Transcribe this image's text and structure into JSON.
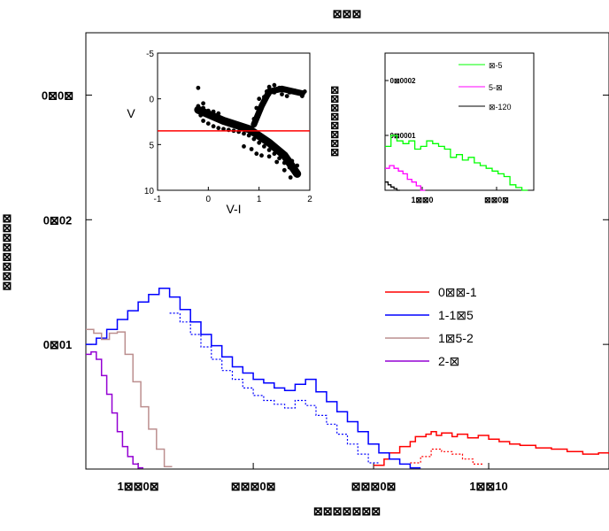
{
  "chart_data": [
    {
      "type": "line",
      "title": "⊠⊠⊠",
      "xlabel": "⊠⊠⊠⊠⊠⊠⊠",
      "ylabel": "⊠⊠⊠⊠⊠⊠⊠⊠",
      "x_ticks": [
        "1⊠⊠0⊠",
        "⊠⊠⊠0⊠",
        "⊠⊠⊠0⊠",
        "1⊠⊠10"
      ],
      "y_ticks": [
        "0⊠01",
        "0⊠02",
        "0⊠0⊠"
      ],
      "xlim": [
        0,
        1
      ],
      "ylim": [
        0,
        0.035
      ],
      "legend_position": "right",
      "series": [
        {
          "name": "0⊠⊠-1",
          "color": "#ff0000",
          "solid": {
            "x": [
              0.55,
              0.57,
              0.58,
              0.6,
              0.62,
              0.63,
              0.65,
              0.66,
              0.67,
              0.68,
              0.7,
              0.71,
              0.73,
              0.75,
              0.77,
              0.79,
              0.81,
              0.83,
              0.86,
              0.89,
              0.92,
              0.95,
              0.98,
              1.0
            ],
            "y": [
              0.0003,
              0.0008,
              0.0013,
              0.0018,
              0.0022,
              0.0026,
              0.0028,
              0.003,
              0.0027,
              0.0029,
              0.0026,
              0.0028,
              0.0025,
              0.0027,
              0.0024,
              0.0022,
              0.002,
              0.0019,
              0.0017,
              0.0016,
              0.0014,
              0.0012,
              0.0013,
              0.0012
            ]
          },
          "dotted": {
            "x": [
              0.62,
              0.64,
              0.66,
              0.68,
              0.7,
              0.72,
              0.74
            ],
            "y": [
              0.0005,
              0.001,
              0.0016,
              0.0014,
              0.0012,
              0.0008,
              0.0004
            ]
          }
        },
        {
          "name": "1-1⊠5",
          "color": "#0000ff",
          "solid": {
            "x": [
              0,
              0.02,
              0.04,
              0.06,
              0.08,
              0.1,
              0.12,
              0.14,
              0.16,
              0.18,
              0.2,
              0.22,
              0.24,
              0.26,
              0.28,
              0.3,
              0.32,
              0.34,
              0.36,
              0.38,
              0.4,
              0.42,
              0.44,
              0.46,
              0.48,
              0.5,
              0.52,
              0.54,
              0.56,
              0.58,
              0.6,
              0.62
            ],
            "y": [
              0.01,
              0.0105,
              0.0112,
              0.012,
              0.0127,
              0.0134,
              0.014,
              0.0145,
              0.0138,
              0.0128,
              0.0118,
              0.0108,
              0.0099,
              0.009,
              0.0082,
              0.0077,
              0.0072,
              0.0069,
              0.0065,
              0.0063,
              0.0068,
              0.0072,
              0.0062,
              0.0054,
              0.0046,
              0.0038,
              0.003,
              0.002,
              0.0013,
              0.0008,
              0.0004,
              0.0001
            ]
          },
          "dotted": {
            "x": [
              0.16,
              0.18,
              0.2,
              0.22,
              0.24,
              0.26,
              0.28,
              0.3,
              0.32,
              0.34,
              0.36,
              0.38,
              0.4,
              0.42,
              0.44,
              0.46,
              0.48,
              0.5,
              0.52,
              0.54
            ],
            "y": [
              0.0125,
              0.0118,
              0.0108,
              0.0098,
              0.0088,
              0.0079,
              0.0072,
              0.0065,
              0.0059,
              0.0055,
              0.0052,
              0.0049,
              0.0055,
              0.0051,
              0.0043,
              0.0036,
              0.0028,
              0.002,
              0.0012,
              0.0005
            ]
          }
        },
        {
          "name": "1⊠5-2",
          "color": "#bc8f8f",
          "solid": {
            "x": [
              0,
              0.015,
              0.03,
              0.045,
              0.06,
              0.075,
              0.09,
              0.105,
              0.12,
              0.135,
              0.15
            ],
            "y": [
              0.0112,
              0.0109,
              0.0104,
              0.0109,
              0.011,
              0.0092,
              0.007,
              0.005,
              0.0032,
              0.0016,
              0.0002
            ]
          }
        },
        {
          "name": "2-⊠",
          "color": "#9400d3",
          "solid": {
            "x": [
              0,
              0.01,
              0.02,
              0.03,
              0.04,
              0.05,
              0.06,
              0.07,
              0.08,
              0.09,
              0.1
            ],
            "y": [
              0.0092,
              0.0094,
              0.0088,
              0.0075,
              0.006,
              0.0045,
              0.003,
              0.0018,
              0.001,
              0.0004,
              0.0001
            ]
          }
        }
      ]
    },
    {
      "type": "scatter",
      "xlabel": "V-I",
      "ylabel": "V",
      "x_ticks": [
        "-1",
        "0",
        "1",
        "2"
      ],
      "y_ticks": [
        "-5",
        "0",
        "5",
        "10"
      ],
      "xlim": [
        -1,
        2
      ],
      "ylim": [
        10,
        -5
      ],
      "reference_line": {
        "y": 3.5,
        "color": "#ff0000"
      },
      "points": [
        [
          -0.2,
          1.2
        ],
        [
          -0.1,
          1.0
        ],
        [
          0.0,
          1.3
        ],
        [
          0.1,
          1.4
        ],
        [
          0.2,
          1.6
        ],
        [
          -0.15,
          1.8
        ],
        [
          0.05,
          1.9
        ],
        [
          0.15,
          2.1
        ],
        [
          0.25,
          2.3
        ],
        [
          0.35,
          2.5
        ],
        [
          0.45,
          2.7
        ],
        [
          0.55,
          2.9
        ],
        [
          0.65,
          3.1
        ],
        [
          0.75,
          3.3
        ],
        [
          0.85,
          3.5
        ],
        [
          0.95,
          3.8
        ],
        [
          1.05,
          4.1
        ],
        [
          1.15,
          4.5
        ],
        [
          1.25,
          4.9
        ],
        [
          1.35,
          5.3
        ],
        [
          1.45,
          5.8
        ],
        [
          1.55,
          6.3
        ],
        [
          1.65,
          6.8
        ],
        [
          1.75,
          7.3
        ],
        [
          -0.1,
          2.4
        ],
        [
          0.0,
          2.7
        ],
        [
          0.1,
          3.0
        ],
        [
          0.2,
          3.2
        ],
        [
          0.3,
          3.3
        ],
        [
          0.4,
          3.4
        ],
        [
          0.5,
          3.5
        ],
        [
          0.6,
          3.6
        ],
        [
          0.7,
          3.8
        ],
        [
          0.8,
          4.0
        ],
        [
          0.9,
          4.4
        ],
        [
          1.0,
          4.8
        ],
        [
          1.1,
          5.2
        ],
        [
          1.2,
          5.6
        ],
        [
          1.3,
          6.0
        ],
        [
          1.4,
          6.5
        ],
        [
          1.5,
          7.0
        ],
        [
          1.6,
          7.5
        ],
        [
          1.7,
          8.0
        ],
        [
          1.75,
          8.3
        ],
        [
          1.62,
          8.6
        ],
        [
          1.5,
          7.8
        ],
        [
          1.35,
          6.9
        ],
        [
          1.2,
          6.3
        ],
        [
          0.9,
          2.2
        ],
        [
          1.0,
          1.4
        ],
        [
          1.05,
          0.6
        ],
        [
          1.1,
          -0.2
        ],
        [
          1.15,
          -0.8
        ],
        [
          1.2,
          -1.3
        ],
        [
          1.3,
          -1.5
        ],
        [
          1.4,
          -1.2
        ],
        [
          1.5,
          -1.0
        ],
        [
          1.6,
          -0.7
        ],
        [
          1.7,
          -0.9
        ],
        [
          1.8,
          -0.6
        ],
        [
          1.9,
          -0.8
        ],
        [
          1.85,
          -0.3
        ],
        [
          1.2,
          -0.5
        ],
        [
          1.1,
          0.2
        ],
        [
          0.95,
          1.0
        ],
        [
          1.0,
          0.0
        ],
        [
          1.25,
          -0.9
        ],
        [
          1.45,
          -0.5
        ],
        [
          1.55,
          -0.3
        ],
        [
          1.3,
          -0.7
        ],
        [
          -0.2,
          0.8
        ],
        [
          -0.1,
          0.5
        ],
        [
          0.85,
          5.5
        ],
        [
          1.05,
          6.2
        ],
        [
          0.7,
          5.2
        ],
        [
          0.95,
          6.0
        ],
        [
          1.45,
          6.0
        ],
        [
          1.6,
          7.1
        ],
        [
          1.7,
          7.7
        ],
        [
          -0.2,
          -1.2
        ]
      ]
    },
    {
      "type": "line",
      "ylabel": "⊠⊠⊠⊠⊠⊠⊠⊠",
      "x_ticks": [
        "1⊠⊠0",
        "⊠⊠0⊠"
      ],
      "y_ticks": [
        "0⊠0001",
        "0⊠0002"
      ],
      "xlim": [
        0,
        1
      ],
      "ylim": [
        0,
        0.00025
      ],
      "legend_position": "top-right",
      "series": [
        {
          "name": "⊠-5",
          "color": "#00ff00",
          "x": [
            0,
            0.04,
            0.08,
            0.12,
            0.16,
            0.2,
            0.24,
            0.28,
            0.32,
            0.36,
            0.4,
            0.44,
            0.48,
            0.52,
            0.56,
            0.6,
            0.64,
            0.68,
            0.72,
            0.76,
            0.8,
            0.84,
            0.88,
            0.92
          ],
          "y": [
            8e-05,
            0.0001,
            9e-05,
            8.5e-05,
            9e-05,
            7.5e-05,
            8e-05,
            9e-05,
            8.5e-05,
            8e-05,
            7.5e-05,
            6e-05,
            6.5e-05,
            5.5e-05,
            6e-05,
            5e-05,
            4.5e-05,
            4e-05,
            3.5e-05,
            3e-05,
            2.5e-05,
            1e-05,
            5e-06,
            0.0
          ]
        },
        {
          "name": "5-⊠",
          "color": "#ff00ff",
          "x": [
            0,
            0.03,
            0.06,
            0.09,
            0.12,
            0.15,
            0.18,
            0.21,
            0.24
          ],
          "y": [
            4e-05,
            4.5e-05,
            4e-05,
            3.5e-05,
            3e-05,
            2e-05,
            1.5e-05,
            8e-06,
            0.0
          ]
        },
        {
          "name": "⊠-120",
          "color": "#000000",
          "x": [
            0,
            0.02,
            0.04,
            0.06,
            0.08
          ],
          "y": [
            1.5e-05,
            1e-05,
            6e-06,
            3e-06,
            0.0
          ]
        }
      ]
    }
  ]
}
